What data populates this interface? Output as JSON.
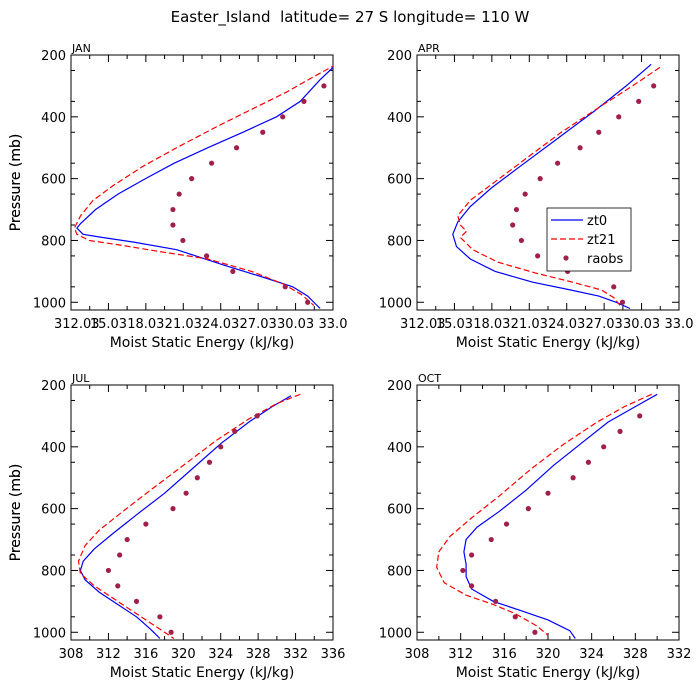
{
  "figure": {
    "title": "Easter_Island  latitude= 27 S longitude= 110 W"
  },
  "colors": {
    "zt0": "#0000ff",
    "zt21": "#ff0000",
    "raobs": "#a0204a",
    "axis": "#000000"
  },
  "chart_data": [
    {
      "type": "line",
      "panel": "JAN",
      "xlabel": "Moist Static Energy (kJ/kg)",
      "ylabel": "Pressure (mb)",
      "xlim": [
        312.03,
        333.03
      ],
      "ylim": [
        1025,
        200
      ],
      "xticks": [
        312.03,
        315.03,
        318.03,
        321.03,
        324.03,
        327.03,
        330.03,
        333.03
      ],
      "xtick_labels": [
        "312.03",
        "15.03",
        "18.03",
        "21.03",
        "24.03",
        "27.03",
        "30.03",
        "33.0"
      ],
      "yticks": [
        200,
        400,
        600,
        800,
        1000
      ],
      "series": [
        {
          "name": "zt0",
          "style": "solid",
          "x": [
            333.3,
            332.0,
            330.4,
            328.5,
            325.8,
            323.0,
            320.3,
            318.0,
            315.8,
            314.0,
            312.8,
            312.5,
            313.0,
            314.5,
            317.0,
            320.5,
            324.3,
            327.5,
            329.8,
            331.0,
            332.0
          ],
          "y": [
            230,
            280,
            350,
            400,
            450,
            500,
            550,
            600,
            650,
            700,
            745,
            760,
            780,
            790,
            805,
            830,
            880,
            920,
            950,
            980,
            1020
          ]
        },
        {
          "name": "zt21",
          "style": "dashed",
          "x": [
            333.3,
            331.5,
            329.3,
            326.8,
            323.8,
            320.5,
            317.8,
            315.5,
            313.8,
            312.8,
            312.3,
            312.5,
            313.5,
            316.0,
            319.0,
            323.0,
            326.5,
            329.0,
            330.5,
            331.5
          ],
          "y": [
            230,
            270,
            320,
            370,
            430,
            500,
            560,
            620,
            670,
            720,
            760,
            780,
            800,
            815,
            835,
            860,
            900,
            940,
            975,
            1010
          ]
        },
        {
          "name": "raobs",
          "style": "dots",
          "x": [
            332.3,
            330.7,
            329.0,
            327.4,
            325.3,
            323.3,
            321.7,
            320.7,
            320.2,
            320.2,
            321.0,
            322.9,
            325.0,
            329.2,
            331.0
          ],
          "y": [
            300,
            350,
            400,
            450,
            500,
            550,
            600,
            650,
            700,
            750,
            800,
            850,
            900,
            950,
            1000
          ]
        }
      ]
    },
    {
      "type": "line",
      "panel": "APR",
      "xlabel": "Moist Static Energy (kJ/kg)",
      "ylabel": "Pressure (mb)",
      "xlim": [
        312.03,
        333.03
      ],
      "ylim": [
        1025,
        200
      ],
      "xticks": [
        312.03,
        315.03,
        318.03,
        321.03,
        324.03,
        327.03,
        330.03,
        333.03
      ],
      "xtick_labels": [
        "312.03",
        "15.03",
        "18.03",
        "21.03",
        "24.03",
        "27.03",
        "30.03",
        "33.0"
      ],
      "yticks": [
        200,
        400,
        600,
        800,
        1000
      ],
      "legend": {
        "entries": [
          "zt0",
          "zt21",
          "raobs"
        ],
        "placement": "right-middle"
      },
      "series": [
        {
          "name": "zt0",
          "style": "solid",
          "x": [
            330.8,
            328.8,
            326.3,
            323.3,
            320.3,
            318.0,
            316.3,
            315.3,
            314.9,
            315.2,
            316.3,
            318.3,
            321.3,
            324.3,
            326.6,
            328.0,
            329.1
          ],
          "y": [
            230,
            300,
            380,
            470,
            560,
            630,
            690,
            740,
            780,
            820,
            860,
            900,
            935,
            960,
            980,
            1000,
            1020
          ]
        },
        {
          "name": "zt21",
          "style": "dashed",
          "x": [
            331.5,
            329.3,
            326.6,
            323.6,
            320.6,
            318.3,
            316.3,
            315.3,
            315.5,
            316.0,
            315.5,
            316.5,
            318.5,
            321.5,
            324.5,
            326.8,
            327.8,
            328.3
          ],
          "y": [
            240,
            300,
            370,
            450,
            540,
            610,
            670,
            720,
            750,
            770,
            790,
            830,
            870,
            905,
            935,
            960,
            985,
            1010
          ]
        },
        {
          "name": "raobs",
          "style": "dots",
          "x": [
            331.0,
            329.8,
            328.2,
            326.6,
            325.1,
            323.3,
            321.9,
            320.7,
            320.0,
            319.7,
            320.4,
            321.7,
            324.1,
            327.8,
            328.5
          ],
          "y": [
            300,
            350,
            400,
            450,
            500,
            550,
            600,
            650,
            700,
            750,
            800,
            850,
            900,
            950,
            1000
          ]
        }
      ]
    },
    {
      "type": "line",
      "panel": "JUL",
      "xlabel": "Moist Static Energy (kJ/kg)",
      "ylabel": "Pressure (mb)",
      "xlim": [
        308,
        336
      ],
      "ylim": [
        1025,
        200
      ],
      "xticks": [
        308,
        312,
        316,
        320,
        324,
        328,
        332,
        336
      ],
      "xtick_labels": [
        "308",
        "312",
        "316",
        "320",
        "324",
        "328",
        "332",
        "336"
      ],
      "yticks": [
        200,
        400,
        600,
        800,
        1000
      ],
      "series": [
        {
          "name": "zt0",
          "style": "solid",
          "x": [
            331.5,
            329.5,
            327.0,
            324.0,
            321.0,
            318.0,
            315.0,
            312.5,
            310.5,
            309.3,
            309.0,
            309.5,
            311.0,
            313.0,
            315.0,
            316.5,
            317.5
          ],
          "y": [
            235,
            270,
            320,
            390,
            470,
            550,
            620,
            680,
            730,
            770,
            800,
            830,
            870,
            910,
            950,
            990,
            1020
          ]
        },
        {
          "name": "zt21",
          "style": "dashed",
          "x": [
            332.5,
            330.0,
            327.0,
            323.5,
            320.0,
            316.5,
            313.5,
            311.0,
            309.5,
            308.8,
            309.0,
            310.5,
            312.5,
            314.5,
            316.5,
            318.0,
            319.0
          ],
          "y": [
            230,
            260,
            310,
            380,
            460,
            540,
            610,
            670,
            720,
            770,
            810,
            850,
            890,
            930,
            970,
            1000,
            1020
          ]
        },
        {
          "name": "raobs",
          "style": "dots",
          "x": [
            327.9,
            325.5,
            324.0,
            322.8,
            321.5,
            320.3,
            318.9,
            316.0,
            314.0,
            313.2,
            312.0,
            313.0,
            315.0,
            317.5,
            318.7
          ],
          "y": [
            300,
            350,
            400,
            450,
            500,
            550,
            600,
            650,
            700,
            750,
            800,
            850,
            900,
            950,
            1000
          ]
        }
      ]
    },
    {
      "type": "line",
      "panel": "OCT",
      "xlabel": "Moist Static Energy (kJ/kg)",
      "ylabel": "Pressure (mb)",
      "xlim": [
        308,
        332
      ],
      "ylim": [
        1025,
        200
      ],
      "xticks": [
        308,
        312,
        316,
        320,
        324,
        328,
        332
      ],
      "xtick_labels": [
        "308",
        "312",
        "316",
        "320",
        "324",
        "328",
        "332"
      ],
      "yticks": [
        200,
        400,
        600,
        800,
        1000
      ],
      "series": [
        {
          "name": "zt0",
          "style": "solid",
          "x": [
            330.0,
            328.0,
            325.5,
            323.0,
            320.5,
            318.0,
            315.5,
            313.5,
            312.5,
            312.3,
            312.5,
            312.5,
            313.0,
            315.0,
            317.5,
            320.0,
            322.0,
            322.5
          ],
          "y": [
            230,
            270,
            320,
            390,
            460,
            540,
            610,
            660,
            700,
            740,
            780,
            820,
            860,
            900,
            930,
            960,
            995,
            1020
          ]
        },
        {
          "name": "zt21",
          "style": "dashed",
          "x": [
            329.5,
            327.0,
            324.5,
            321.5,
            318.5,
            315.5,
            313.0,
            311.0,
            310.0,
            309.8,
            310.5,
            312.5,
            315.0,
            317.0,
            319.0,
            320.0
          ],
          "y": [
            230,
            270,
            320,
            390,
            470,
            560,
            630,
            690,
            740,
            790,
            840,
            880,
            910,
            940,
            980,
            1010
          ]
        },
        {
          "name": "raobs",
          "style": "dots",
          "x": [
            328.4,
            326.6,
            325.1,
            323.7,
            322.3,
            320.0,
            318.2,
            316.2,
            314.8,
            313.0,
            312.2,
            313.0,
            315.2,
            317.0,
            318.8
          ],
          "y": [
            300,
            350,
            400,
            450,
            500,
            550,
            600,
            650,
            700,
            750,
            800,
            850,
            900,
            950,
            1000
          ]
        }
      ]
    }
  ]
}
